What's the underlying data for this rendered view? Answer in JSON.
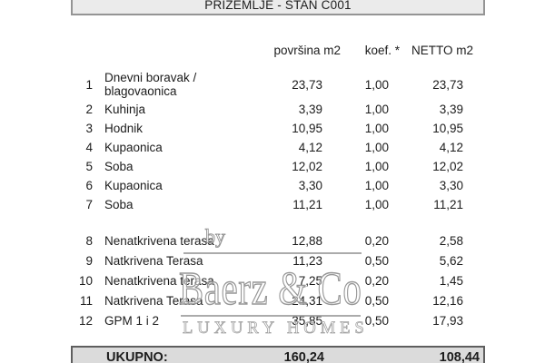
{
  "title": "PRIZEMLJE - STAN C001",
  "table": {
    "headers": {
      "povrsina": "površina m2",
      "koef": "koef. *",
      "netto": "NETTO m2"
    },
    "rows": [
      {
        "num": "1",
        "name": "Dnevni boravak / blagovaonica",
        "povrsina": "23,73",
        "koef": "1,00",
        "netto": "23,73"
      },
      {
        "num": "2",
        "name": "Kuhinja",
        "povrsina": "3,39",
        "koef": "1,00",
        "netto": "3,39"
      },
      {
        "num": "3",
        "name": "Hodnik",
        "povrsina": "10,95",
        "koef": "1,00",
        "netto": "10,95"
      },
      {
        "num": "4",
        "name": "Kupaonica",
        "povrsina": "4,12",
        "koef": "1,00",
        "netto": "4,12"
      },
      {
        "num": "5",
        "name": "Soba",
        "povrsina": "12,02",
        "koef": "1,00",
        "netto": "12,02"
      },
      {
        "num": "6",
        "name": "Kupaonica",
        "povrsina": "3,30",
        "koef": "1,00",
        "netto": "3,30"
      },
      {
        "num": "7",
        "name": "Soba",
        "povrsina": "11,21",
        "koef": "1,00",
        "netto": "11,21"
      },
      {
        "num": "8",
        "name": "Nenatkrivena terasa",
        "povrsina": "12,88",
        "koef": "0,20",
        "netto": "2,58"
      },
      {
        "num": "9",
        "name": "Natkrivena Terasa",
        "povrsina": "11,23",
        "koef": "0,50",
        "netto": "5,62"
      },
      {
        "num": "10",
        "name": "Nenatkrivena terasa",
        "povrsina": "7,25",
        "koef": "0,20",
        "netto": "1,45"
      },
      {
        "num": "11",
        "name": "Natkrivena Terasa",
        "povrsina": "24,31",
        "koef": "0,50",
        "netto": "12,16"
      },
      {
        "num": "12",
        "name": "GPM 1 i 2",
        "povrsina": "35,85",
        "koef": "0,50",
        "netto": "17,93"
      }
    ],
    "total": {
      "label": "UKUPNO:",
      "povrsina": "160,24",
      "netto": "108,44"
    }
  },
  "watermark": {
    "by": "by",
    "brand": "Baerz & Co",
    "tagline": "LUXURY HOMES"
  },
  "colors": {
    "text": "#1c1c1c",
    "title_box_fill": "#ebebeb",
    "title_box_border": "#949494",
    "total_box_fill": "#dbdbdb",
    "total_box_border": "#5e5e5e",
    "watermark_gray": "#979797"
  }
}
